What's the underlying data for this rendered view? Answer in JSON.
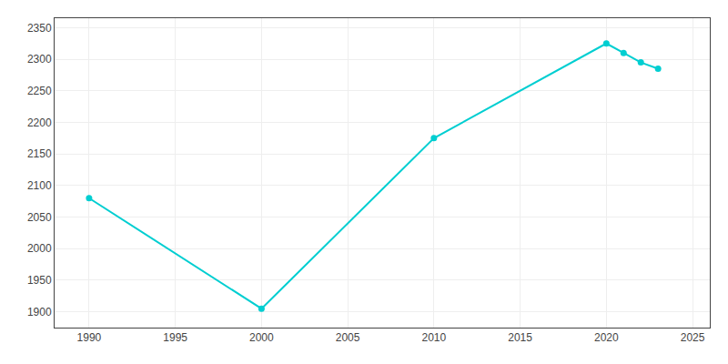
{
  "chart_data": {
    "type": "line",
    "x": [
      1990,
      2000,
      2010,
      2020,
      2021,
      2022,
      2023
    ],
    "values": [
      2080,
      1905,
      2175,
      2325,
      2310,
      2295,
      2285
    ],
    "color": "#00CED1",
    "marker": "circle",
    "xlim": [
      1988,
      2026
    ],
    "xticks": [
      1990,
      1995,
      2000,
      2005,
      2010,
      2015,
      2020,
      2025
    ],
    "ylim": [
      1875,
      2365
    ],
    "yticks": [
      1900,
      1950,
      2000,
      2050,
      2100,
      2150,
      2200,
      2250,
      2300,
      2350
    ],
    "grid": true
  }
}
